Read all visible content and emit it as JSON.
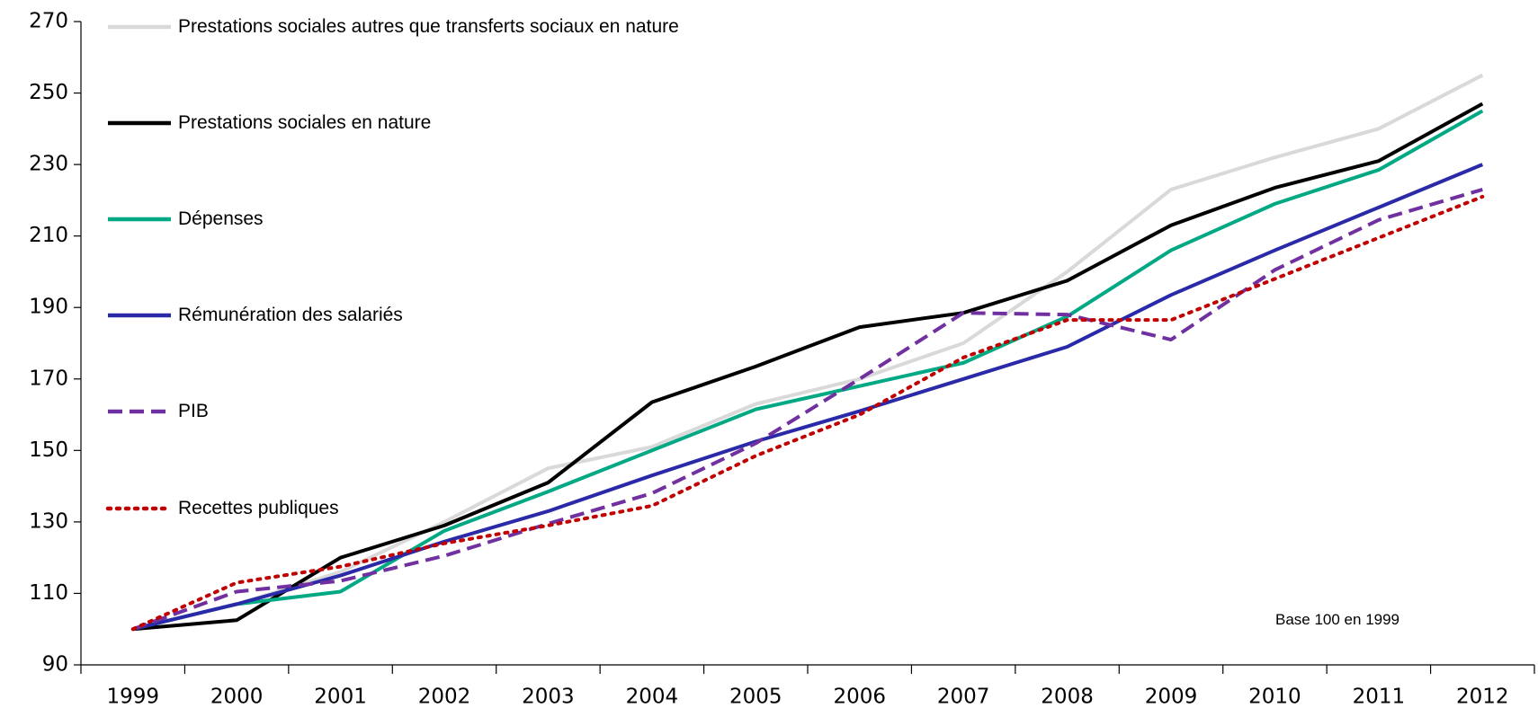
{
  "chart_data": {
    "type": "line",
    "categories": [
      "1999",
      "2000",
      "2001",
      "2002",
      "2003",
      "2004",
      "2005",
      "2006",
      "2007",
      "2008",
      "2009",
      "2010",
      "2011",
      "2012"
    ],
    "series": [
      {
        "name": "Prestations sociales autres que transferts sociaux en nature",
        "color": "#d9d9d9",
        "dash": "solid",
        "values": [
          100,
          107,
          116,
          130,
          145,
          151,
          163,
          170,
          180,
          200,
          223,
          232,
          240,
          255
        ]
      },
      {
        "name": "Prestations sociales en nature",
        "color": "#000000",
        "dash": "solid",
        "values": [
          100,
          102.5,
          120,
          129,
          141,
          163.5,
          173.5,
          184.5,
          188.5,
          197.5,
          213,
          223.5,
          231,
          247
        ]
      },
      {
        "name": "Dépenses",
        "color": "#00a884",
        "dash": "solid",
        "values": [
          100,
          107,
          110.5,
          127.5,
          138.5,
          150,
          161.5,
          168,
          174.5,
          187.5,
          206,
          219,
          228.5,
          245
        ]
      },
      {
        "name": "Rémunération des salariés",
        "color": "#2a2aa8",
        "dash": "solid",
        "values": [
          100,
          107,
          115,
          124.5,
          133,
          143,
          152.5,
          161,
          170,
          179,
          193.5,
          206,
          218,
          230
        ]
      },
      {
        "name": "PIB",
        "color": "#7030a0",
        "dash": "dashed",
        "values": [
          100,
          110.5,
          113.5,
          120.5,
          129.5,
          138,
          152,
          170,
          188.5,
          188,
          181,
          200.5,
          214.5,
          223
        ]
      },
      {
        "name": "Recettes publiques",
        "color": "#c00000",
        "dash": "dotted",
        "values": [
          100,
          113,
          117.5,
          124,
          129,
          134.5,
          148.5,
          160,
          176,
          186.5,
          186.5,
          198,
          209.5,
          221
        ]
      }
    ],
    "ylim": [
      90,
      270
    ],
    "yticks": [
      90,
      110,
      130,
      150,
      170,
      190,
      210,
      230,
      250,
      270
    ],
    "annotation": "Base 100 en 1999",
    "grid": false,
    "legend": "upper left"
  }
}
